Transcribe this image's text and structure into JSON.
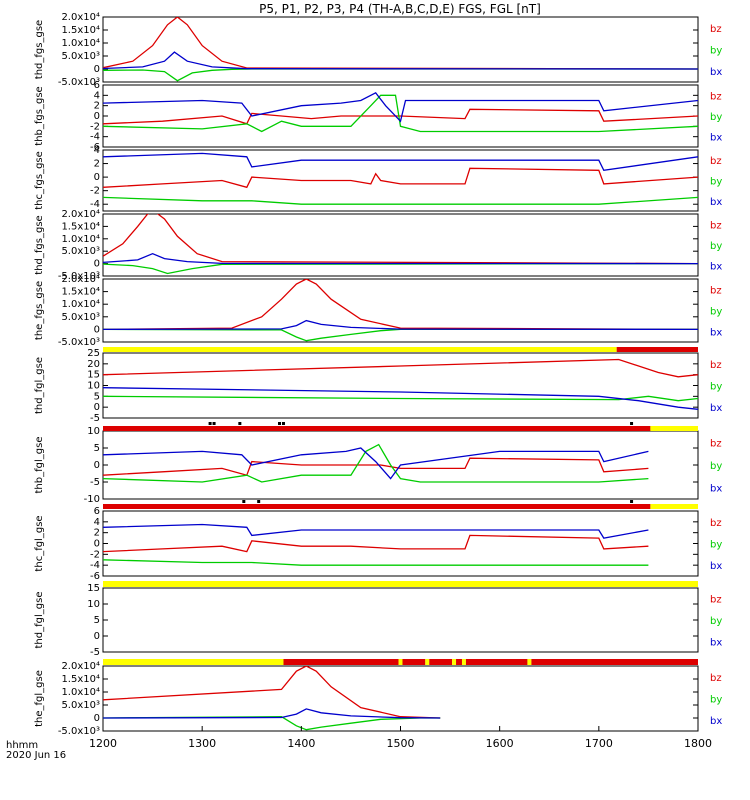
{
  "title": "P5, P1, P2, P3, P4 (TH-A,B,C,D,E) FGS, FGL [nT]",
  "footer": {
    "time_label": "hhmm",
    "date_label": "2020 Jun 16"
  },
  "colors": {
    "bz": "#dd0000",
    "by": "#00cc00",
    "bx": "#0000cc",
    "bar_yellow": "#ffff00",
    "bar_red": "#dd0000",
    "bar_black": "#000000"
  },
  "chart_data": [
    {
      "type": "line",
      "ylabel": "thd_fgs_gse",
      "xlim": [
        1200,
        1800
      ],
      "yticks": [
        "2.0x10⁴",
        "1.5x10⁴",
        "1.0x10⁴",
        "5.0x10³",
        "0",
        "-5.0x10³"
      ],
      "legend": [
        "bz",
        "by",
        "bx"
      ],
      "series": [
        {
          "name": "bz",
          "x": [
            1200,
            1230,
            1250,
            1265,
            1275,
            1285,
            1300,
            1320,
            1345,
            1800
          ],
          "y": [
            500,
            3000,
            9000,
            17000,
            20000,
            17000,
            9000,
            3000,
            400,
            0
          ]
        },
        {
          "name": "by",
          "x": [
            1200,
            1240,
            1262,
            1275,
            1290,
            1310,
            1330,
            1350,
            1800
          ],
          "y": [
            -500,
            -400,
            -1000,
            -4500,
            -1500,
            -500,
            -100,
            0,
            0
          ]
        },
        {
          "name": "bx",
          "x": [
            1200,
            1240,
            1262,
            1272,
            1285,
            1310,
            1345,
            1800
          ],
          "y": [
            200,
            800,
            3000,
            6500,
            3000,
            800,
            100,
            0
          ]
        }
      ]
    },
    {
      "type": "line",
      "ylabel": "thb_fgs_gse",
      "xlim": [
        1200,
        1800
      ],
      "yticks": [
        "6",
        "4",
        "2",
        "0",
        "-2",
        "-4",
        "-6"
      ],
      "legend": [
        "bz",
        "by",
        "bx"
      ],
      "series": [
        {
          "name": "bz",
          "x": [
            1200,
            1260,
            1320,
            1345,
            1350,
            1380,
            1410,
            1440,
            1480,
            1500,
            1565,
            1570,
            1700,
            1705,
            1800
          ],
          "y": [
            -1.5,
            -1,
            0,
            -1.5,
            0.5,
            0,
            -0.5,
            0,
            0,
            0,
            -0.5,
            1.3,
            1,
            -1,
            0
          ]
        },
        {
          "name": "by",
          "x": [
            1200,
            1300,
            1345,
            1360,
            1380,
            1400,
            1450,
            1470,
            1480,
            1495,
            1500,
            1520,
            1700,
            1800
          ],
          "y": [
            -2,
            -2.5,
            -1.5,
            -3,
            -1,
            -2,
            -2,
            2,
            4,
            4,
            -2,
            -3,
            -3,
            -2
          ]
        },
        {
          "name": "bx",
          "x": [
            1200,
            1300,
            1340,
            1350,
            1400,
            1440,
            1460,
            1475,
            1485,
            1500,
            1505,
            1600,
            1700,
            1705,
            1800
          ],
          "y": [
            2.5,
            3,
            2.5,
            0,
            2,
            2.5,
            3,
            4.5,
            2,
            -1,
            3,
            3,
            3,
            1,
            3
          ]
        }
      ]
    },
    {
      "type": "line",
      "ylabel": "thc_fgs_gse",
      "xlim": [
        1200,
        1800
      ],
      "yticks": [
        "4",
        "2",
        "0",
        "-2",
        "-4"
      ],
      "legend": [
        "bz",
        "by",
        "bx"
      ],
      "series": [
        {
          "name": "bz",
          "x": [
            1200,
            1260,
            1320,
            1345,
            1350,
            1400,
            1450,
            1470,
            1475,
            1480,
            1500,
            1565,
            1570,
            1700,
            1705,
            1800
          ],
          "y": [
            -1.5,
            -1,
            -0.5,
            -1.5,
            0,
            -0.5,
            -0.5,
            -1,
            0.5,
            -0.5,
            -1,
            -1,
            1.3,
            1,
            -1,
            0
          ]
        },
        {
          "name": "by",
          "x": [
            1200,
            1300,
            1350,
            1400,
            1500,
            1600,
            1700,
            1800
          ],
          "y": [
            -3,
            -3.5,
            -3.5,
            -4,
            -4,
            -4,
            -4,
            -3
          ]
        },
        {
          "name": "bx",
          "x": [
            1200,
            1300,
            1345,
            1350,
            1400,
            1500,
            1600,
            1700,
            1705,
            1800
          ],
          "y": [
            3,
            3.5,
            3,
            1.5,
            2.5,
            2.5,
            2.5,
            2.5,
            1,
            3
          ]
        }
      ]
    },
    {
      "type": "line",
      "ylabel": "thd_fgs_gse",
      "xlim": [
        1200,
        1800
      ],
      "yticks": [
        "2.0x10⁴",
        "1.5x10⁴",
        "1.0x10⁴",
        "5.0x10³",
        "0",
        "-5.0x10³"
      ],
      "legend": [
        "bz",
        "by",
        "bx"
      ],
      "series": [
        {
          "name": "bz",
          "x": [
            1200,
            1220,
            1235,
            1245,
            1252,
            1262,
            1275,
            1295,
            1320,
            1800
          ],
          "y": [
            3000,
            8000,
            15000,
            20000,
            21000,
            18000,
            11000,
            4000,
            800,
            0
          ]
        },
        {
          "name": "by",
          "x": [
            1200,
            1230,
            1250,
            1265,
            1290,
            1320,
            1800
          ],
          "y": [
            -200,
            -800,
            -2000,
            -4000,
            -2000,
            -300,
            0
          ]
        },
        {
          "name": "bx",
          "x": [
            1200,
            1235,
            1250,
            1262,
            1285,
            1320,
            1800
          ],
          "y": [
            500,
            1500,
            4000,
            2000,
            800,
            100,
            0
          ]
        }
      ]
    },
    {
      "type": "line",
      "ylabel": "the_fgs_gse",
      "xlim": [
        1200,
        1800
      ],
      "yticks": [
        "2.0x10⁴",
        "1.5x10⁴",
        "1.0x10⁴",
        "5.0x10³",
        "0",
        "-5.0x10³"
      ],
      "legend": [
        "bz",
        "by",
        "bx"
      ],
      "series": [
        {
          "name": "bz",
          "x": [
            1200,
            1330,
            1360,
            1380,
            1395,
            1405,
            1415,
            1430,
            1460,
            1500,
            1800
          ],
          "y": [
            0,
            500,
            5000,
            12000,
            18000,
            20000,
            18000,
            12000,
            4000,
            500,
            0
          ]
        },
        {
          "name": "by",
          "x": [
            1200,
            1380,
            1395,
            1405,
            1420,
            1450,
            1480,
            1500,
            1800
          ],
          "y": [
            0,
            -200,
            -3000,
            -4500,
            -3500,
            -2000,
            -500,
            0,
            0
          ]
        },
        {
          "name": "bx",
          "x": [
            1200,
            1380,
            1395,
            1405,
            1420,
            1450,
            1500,
            1800
          ],
          "y": [
            0,
            200,
            1500,
            3500,
            2000,
            800,
            100,
            0
          ]
        }
      ]
    },
    {
      "type": "line",
      "ylabel": "thd_fgl_gse",
      "xlim": [
        1200,
        1800
      ],
      "yticks": [
        "25",
        "20",
        "15",
        "10",
        "5",
        "0",
        "-5"
      ],
      "legend": [
        "bz",
        "by",
        "bx"
      ],
      "series": [
        {
          "name": "bz",
          "x": [
            1200,
            1500,
            1720,
            1760,
            1780,
            1800
          ],
          "y": [
            15,
            19,
            22,
            16,
            14,
            15
          ]
        },
        {
          "name": "by",
          "x": [
            1200,
            1500,
            1720,
            1750,
            1780,
            1800
          ],
          "y": [
            5,
            4,
            3.5,
            5,
            3,
            4
          ]
        },
        {
          "name": "bx",
          "x": [
            1200,
            1500,
            1700,
            1740,
            1780,
            1800
          ],
          "y": [
            9,
            7,
            5,
            3,
            0,
            -1
          ]
        }
      ]
    },
    {
      "type": "line",
      "ylabel": "thb_fgl_gse",
      "xlim": [
        1200,
        1800
      ],
      "yticks": [
        "10",
        "5",
        "0",
        "-5",
        "-10"
      ],
      "legend": [
        "bz",
        "by",
        "bx"
      ],
      "series": [
        {
          "name": "bz",
          "x": [
            1200,
            1260,
            1320,
            1345,
            1350,
            1400,
            1450,
            1480,
            1500,
            1565,
            1570,
            1700,
            1705,
            1750
          ],
          "y": [
            -3,
            -2,
            -1,
            -3,
            1,
            0,
            0,
            0,
            -1,
            -1,
            2,
            1.5,
            -2,
            -1
          ]
        },
        {
          "name": "by",
          "x": [
            1200,
            1300,
            1345,
            1360,
            1400,
            1450,
            1465,
            1478,
            1490,
            1500,
            1520,
            1700,
            1750
          ],
          "y": [
            -4,
            -5,
            -3,
            -5,
            -3,
            -3,
            4,
            6,
            0,
            -4,
            -5,
            -5,
            -4
          ]
        },
        {
          "name": "bx",
          "x": [
            1200,
            1300,
            1340,
            1350,
            1400,
            1445,
            1460,
            1475,
            1490,
            1500,
            1600,
            1700,
            1705,
            1750
          ],
          "y": [
            3,
            4,
            3,
            0,
            3,
            4,
            5,
            1,
            -4,
            0,
            4,
            4,
            1,
            4
          ]
        }
      ]
    },
    {
      "type": "line",
      "ylabel": "thc_fgl_gse",
      "xlim": [
        1200,
        1800
      ],
      "yticks": [
        "6",
        "4",
        "2",
        "0",
        "-2",
        "-4",
        "-6"
      ],
      "legend": [
        "bz",
        "by",
        "bx"
      ],
      "series": [
        {
          "name": "bz",
          "x": [
            1200,
            1260,
            1320,
            1345,
            1350,
            1400,
            1450,
            1500,
            1565,
            1570,
            1700,
            1705,
            1750
          ],
          "y": [
            -1.5,
            -1,
            -0.5,
            -1.5,
            0.5,
            -0.5,
            -0.5,
            -1,
            -1,
            1.5,
            1,
            -1,
            -0.5
          ]
        },
        {
          "name": "by",
          "x": [
            1200,
            1300,
            1350,
            1400,
            1500,
            1600,
            1700,
            1750
          ],
          "y": [
            -3,
            -3.5,
            -3.5,
            -4,
            -4,
            -4,
            -4,
            -4
          ]
        },
        {
          "name": "bx",
          "x": [
            1200,
            1300,
            1345,
            1350,
            1400,
            1500,
            1600,
            1700,
            1705,
            1750
          ],
          "y": [
            3,
            3.5,
            3,
            1.5,
            2.5,
            2.5,
            2.5,
            2.5,
            1,
            2.5
          ]
        }
      ]
    },
    {
      "type": "line",
      "ylabel": "thd_fgl_gse",
      "xlim": [
        1200,
        1800
      ],
      "yticks": [
        "15",
        "10",
        "5",
        "0",
        "-5"
      ],
      "legend": [
        "bz",
        "by",
        "bx"
      ],
      "series": []
    },
    {
      "type": "line",
      "ylabel": "the_fgl_gse",
      "xlim": [
        1200,
        1800
      ],
      "yticks": [
        "2.0x10⁴",
        "1.5x10⁴",
        "1.0x10⁴",
        "5.0x10³",
        "0",
        "-5.0x10³"
      ],
      "legend": [
        "bz",
        "by",
        "bx"
      ],
      "series": [
        {
          "name": "bz",
          "x": [
            1200,
            1380,
            1395,
            1405,
            1415,
            1430,
            1460,
            1500,
            1540
          ],
          "y": [
            7000,
            11000,
            18000,
            20000,
            18000,
            12000,
            4000,
            500,
            0
          ]
        },
        {
          "name": "by",
          "x": [
            1200,
            1380,
            1395,
            1405,
            1420,
            1450,
            1480,
            1520,
            1540
          ],
          "y": [
            0,
            500,
            -3000,
            -4500,
            -3500,
            -2000,
            -500,
            0,
            0
          ]
        },
        {
          "name": "bx",
          "x": [
            1200,
            1380,
            1395,
            1405,
            1420,
            1450,
            1500,
            1540
          ],
          "y": [
            0,
            200,
            1500,
            3500,
            2000,
            800,
            100,
            0
          ]
        }
      ]
    }
  ],
  "x_axis": {
    "ticks": [
      "1200",
      "1300",
      "1400",
      "1500",
      "1600",
      "1700",
      "1800"
    ],
    "values": [
      1200,
      1300,
      1400,
      1500,
      1600,
      1700,
      1800
    ]
  },
  "status_bars": [
    {
      "segments": [
        {
          "from": 1200,
          "to": 1718,
          "color": "yellow"
        },
        {
          "from": 1718,
          "to": 1800,
          "color": "red"
        }
      ]
    },
    {
      "segments": [
        {
          "from": 1200,
          "to": 1752,
          "color": "red"
        },
        {
          "from": 1752,
          "to": 1800,
          "color": "yellow"
        }
      ],
      "ticks": [
        1308,
        1312,
        1338,
        1378,
        1382,
        1733
      ]
    },
    {
      "segments": [
        {
          "from": 1200,
          "to": 1752,
          "color": "red"
        },
        {
          "from": 1752,
          "to": 1800,
          "color": "yellow"
        }
      ],
      "ticks": [
        1342,
        1357,
        1733
      ]
    },
    {
      "segments": [
        {
          "from": 1200,
          "to": 1800,
          "color": "yellow"
        }
      ]
    },
    {
      "segments": [
        {
          "from": 1200,
          "to": 1382,
          "color": "yellow"
        },
        {
          "from": 1382,
          "to": 1498,
          "color": "red"
        },
        {
          "from": 1498,
          "to": 1502,
          "color": "yellow"
        },
        {
          "from": 1502,
          "to": 1525,
          "color": "red"
        },
        {
          "from": 1525,
          "to": 1529,
          "color": "yellow"
        },
        {
          "from": 1529,
          "to": 1552,
          "color": "red"
        },
        {
          "from": 1552,
          "to": 1556,
          "color": "yellow"
        },
        {
          "from": 1556,
          "to": 1562,
          "color": "red"
        },
        {
          "from": 1562,
          "to": 1566,
          "color": "yellow"
        },
        {
          "from": 1566,
          "to": 1628,
          "color": "red"
        },
        {
          "from": 1628,
          "to": 1632,
          "color": "yellow"
        },
        {
          "from": 1632,
          "to": 1800,
          "color": "red"
        }
      ]
    }
  ]
}
